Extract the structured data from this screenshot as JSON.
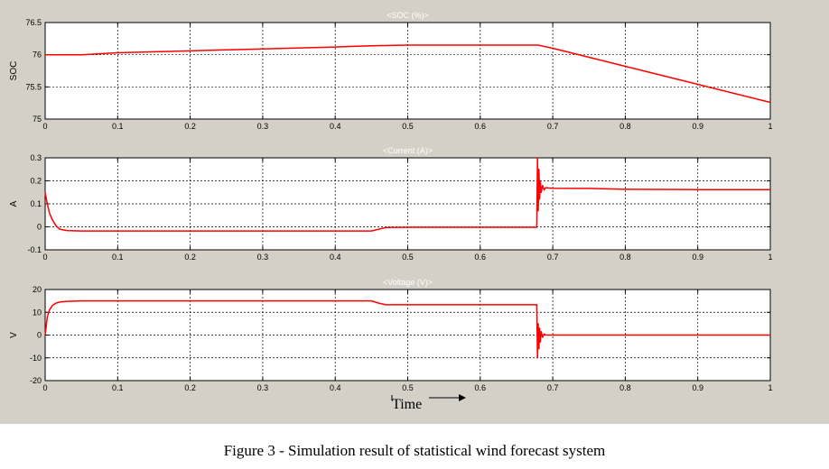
{
  "colors": {
    "background": "#d4d0c8",
    "plot_background": "#ffffff",
    "trace": "#ff0000",
    "axis": "#000000",
    "grid": "#000000"
  },
  "figure": {
    "caption": "Figure 3 - Simulation result of statistical wind forecast system",
    "time_label": "Time"
  },
  "chart_data": [
    {
      "type": "line",
      "title": "<SOC (%)>",
      "xlabel": "",
      "ylabel": "SOC",
      "xlim": [
        0,
        1
      ],
      "ylim": [
        75,
        76.5
      ],
      "grid": true,
      "x_ticks": [
        "0",
        "0.1",
        "0.2",
        "0.3",
        "0.4",
        "0.5",
        "0.6",
        "0.7",
        "0.8",
        "0.9",
        "1"
      ],
      "y_ticks": [
        {
          "v": 75,
          "label": "75"
        },
        {
          "v": 75.5,
          "label": "75.5"
        },
        {
          "v": 76,
          "label": "76"
        },
        {
          "v": 76.5,
          "label": "76.5"
        }
      ],
      "series": [
        {
          "x": [
            0,
            0.05,
            0.1,
            0.2,
            0.3,
            0.4,
            0.45,
            0.5,
            0.6,
            0.68,
            0.7,
            0.8,
            0.9,
            1.0
          ],
          "y": [
            76.0,
            76.0,
            76.03,
            76.06,
            76.09,
            76.12,
            76.14,
            76.15,
            76.15,
            76.15,
            76.1,
            75.82,
            75.54,
            75.26
          ]
        }
      ]
    },
    {
      "type": "line",
      "title": "<Current (A)>",
      "xlabel": "",
      "ylabel": "A",
      "xlim": [
        0,
        1
      ],
      "ylim": [
        -0.1,
        0.3
      ],
      "grid": true,
      "x_ticks": [
        "0",
        "0.1",
        "0.2",
        "0.3",
        "0.4",
        "0.5",
        "0.6",
        "0.7",
        "0.8",
        "0.9",
        "1"
      ],
      "y_ticks": [
        {
          "v": -0.1,
          "label": "-0.1"
        },
        {
          "v": 0,
          "label": "0"
        },
        {
          "v": 0.1,
          "label": "0.1"
        },
        {
          "v": 0.2,
          "label": "0.2"
        },
        {
          "v": 0.3,
          "label": "0.3"
        }
      ],
      "series": [
        {
          "x": [
            0,
            0.003,
            0.006,
            0.01,
            0.015,
            0.02,
            0.03,
            0.05,
            0.1,
            0.2,
            0.3,
            0.4,
            0.45,
            0.46,
            0.47,
            0.5,
            0.6,
            0.678,
            0.679,
            0.68,
            0.681,
            0.682,
            0.683,
            0.684,
            0.686,
            0.688,
            0.69,
            0.7,
            0.75,
            0.8,
            0.9,
            1.0
          ],
          "y": [
            0.15,
            0.1,
            0.06,
            0.03,
            0.005,
            -0.01,
            -0.016,
            -0.018,
            -0.018,
            -0.018,
            -0.018,
            -0.018,
            -0.018,
            -0.01,
            -0.003,
            -0.002,
            -0.002,
            -0.002,
            0.3,
            0.07,
            0.25,
            0.12,
            0.2,
            0.15,
            0.18,
            0.16,
            0.17,
            0.168,
            0.167,
            0.163,
            0.162,
            0.162
          ]
        }
      ]
    },
    {
      "type": "line",
      "title": "<Voltage (V)>",
      "xlabel": "",
      "ylabel": "V",
      "xlim": [
        0,
        1
      ],
      "ylim": [
        -20,
        20
      ],
      "grid": true,
      "x_ticks": [
        "0",
        "0.1",
        "0.2",
        "0.3",
        "0.4",
        "0.5",
        "0.6",
        "0.7",
        "0.8",
        "0.9",
        "1"
      ],
      "y_ticks": [
        {
          "v": -20,
          "label": "-20"
        },
        {
          "v": -10,
          "label": "-10"
        },
        {
          "v": 0,
          "label": "0"
        },
        {
          "v": 10,
          "label": "10"
        },
        {
          "v": 20,
          "label": "20"
        }
      ],
      "series": [
        {
          "x": [
            0,
            0.003,
            0.006,
            0.01,
            0.015,
            0.02,
            0.03,
            0.05,
            0.1,
            0.2,
            0.3,
            0.4,
            0.45,
            0.46,
            0.47,
            0.5,
            0.6,
            0.678,
            0.679,
            0.68,
            0.681,
            0.682,
            0.683,
            0.684,
            0.686,
            0.688,
            0.69,
            0.7,
            0.8,
            0.9,
            1.0
          ],
          "y": [
            0,
            8,
            11,
            13,
            14,
            14.5,
            14.8,
            15,
            15,
            15,
            15,
            15,
            15,
            14,
            13.3,
            13.3,
            13.3,
            13.3,
            -10,
            5,
            -6,
            3,
            -3,
            1.5,
            -1,
            0.5,
            0,
            0,
            0,
            0,
            0
          ]
        }
      ]
    }
  ]
}
